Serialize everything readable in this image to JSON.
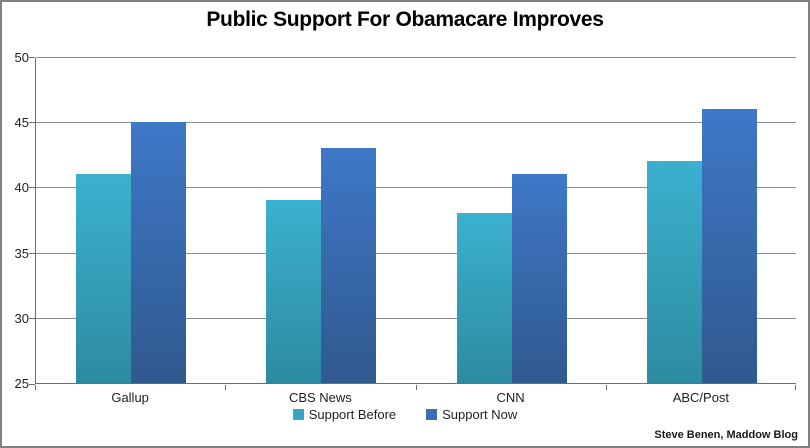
{
  "title": "Public Support For Obamacare Improves",
  "attribution": "Steve Benen, Maddow Blog",
  "chart_data": {
    "type": "bar",
    "categories": [
      "Gallup",
      "CBS News",
      "CNN",
      "ABC/Post"
    ],
    "series": [
      {
        "name": "Support Before",
        "values": [
          41,
          39,
          38,
          42
        ]
      },
      {
        "name": "Support Now",
        "values": [
          45,
          43,
          41,
          46
        ]
      }
    ],
    "title": "Public Support For Obamacare Improves",
    "xlabel": "",
    "ylabel": "",
    "ylim": [
      25,
      50
    ],
    "yticks": [
      25,
      30,
      35,
      40,
      45,
      50
    ],
    "grid": true,
    "legend_position": "bottom"
  },
  "legend": [
    {
      "label": "Support Before",
      "color_top": "#3bb1cf",
      "color_bottom": "#2d8ba0",
      "swatch_color": "#34a7c6"
    },
    {
      "label": "Support Now",
      "color_top": "#3e78c8",
      "color_bottom": "#30598e",
      "swatch_color": "#3a6fb5"
    }
  ],
  "colors": {
    "gridline": "#8c8c8c",
    "axis": "#6e6e6e",
    "label_text": "#1f1f1f",
    "frame_border": "#808080",
    "background": "#ffffff"
  }
}
